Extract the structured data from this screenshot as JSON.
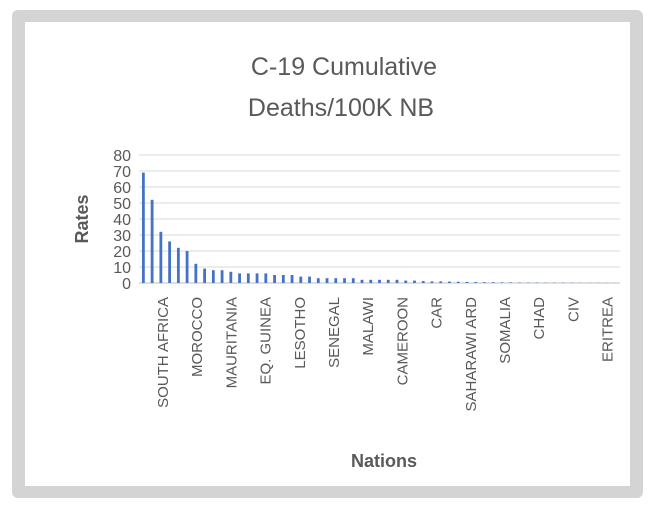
{
  "chart_data": {
    "type": "bar",
    "title_lines": [
      "C-19 Cumulative",
      "Deaths/100K  NB"
    ],
    "xlabel": "Nations",
    "ylabel": "Rates",
    "ylim": [
      0,
      80
    ],
    "yticks": [
      0,
      10,
      20,
      30,
      40,
      50,
      60,
      70,
      80
    ],
    "grid": true,
    "legend": "none",
    "bar_color": "#4472c4",
    "categories_labeled": [
      "SOUTH AFRICA",
      "MOROCCO",
      "MAURITANIA",
      "EQ. GUINEA",
      "LESOTHO",
      "SENEGAL",
      "MALAWI",
      "CAMEROON",
      "CAR",
      "SAHARAWI ARD",
      "SOMALIA",
      "CHAD",
      "CIV",
      "ERITREA"
    ],
    "values": [
      69,
      52,
      32,
      26,
      22,
      20,
      12,
      9,
      8,
      8,
      7,
      6,
      6,
      6,
      6,
      5,
      5,
      5,
      4,
      4,
      3,
      3,
      3,
      3,
      3,
      2,
      2,
      2,
      2,
      2,
      1.5,
      1.5,
      1.2,
      1,
      1,
      0.9,
      0.8,
      0.7,
      0.6,
      0.5,
      0.5,
      0.4,
      0.4,
      0.3,
      0.3,
      0.3,
      0.2,
      0.2,
      0.2,
      0.2,
      0.1,
      0.1,
      0.1,
      0.1,
      0.1
    ]
  }
}
